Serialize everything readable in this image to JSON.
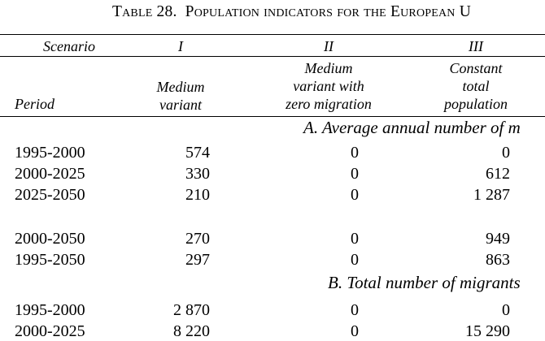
{
  "title": {
    "table_label": "Table 28.",
    "subject": "Population indicators for the European U"
  },
  "header": {
    "scenario_label": "Scenario",
    "period_label": "Period",
    "columns": [
      {
        "roman": "I",
        "lines": [
          "Medium",
          "variant"
        ]
      },
      {
        "roman": "II",
        "lines": [
          "Medium",
          "variant with",
          "zero migration"
        ]
      },
      {
        "roman": "III",
        "lines": [
          "Constant",
          "total",
          "population"
        ]
      }
    ]
  },
  "sections": [
    {
      "heading": "A.  Average annual number of m",
      "rows": [
        {
          "period": "1995-2000",
          "values": [
            "574",
            "0",
            "0"
          ]
        },
        {
          "period": "2000-2025",
          "values": [
            "330",
            "0",
            "612"
          ]
        },
        {
          "period": "2025-2050",
          "values": [
            "210",
            "0",
            "1 287"
          ]
        },
        {
          "period": "2000-2050",
          "values": [
            "270",
            "0",
            "949"
          ]
        },
        {
          "period": "1995-2050",
          "values": [
            "297",
            "0",
            "863"
          ]
        }
      ]
    },
    {
      "heading": "B.  Total number of migrants",
      "rows": [
        {
          "period": "1995-2000",
          "values": [
            "2 870",
            "0",
            "0"
          ]
        },
        {
          "period": "2000-2025",
          "values": [
            "8 220",
            "0",
            "15 290"
          ]
        }
      ]
    }
  ]
}
